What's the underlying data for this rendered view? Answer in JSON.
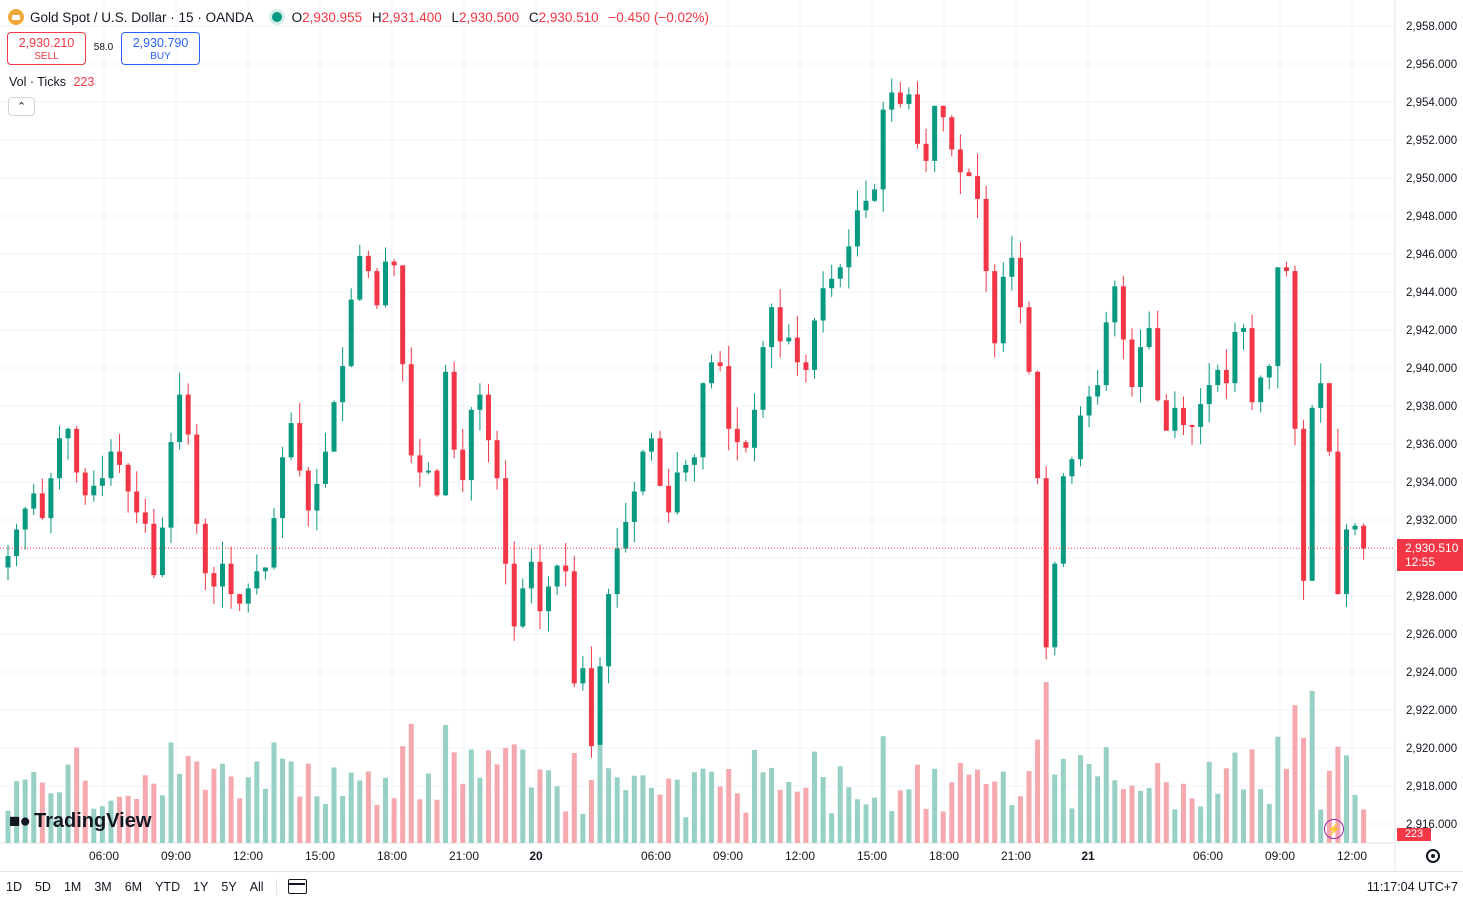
{
  "header": {
    "symbol": "Gold Spot / U.S. Dollar · 15 · OANDA",
    "open_label": "O",
    "open": "2,930.955",
    "high_label": "H",
    "high": "2,931.400",
    "low_label": "L",
    "low": "2,930.500",
    "close_label": "C",
    "close": "2,930.510",
    "change": "−0.450 (−0.02%)"
  },
  "trade": {
    "sell_price": "2,930.210",
    "sell_label": "SELL",
    "spread": "58.0",
    "buy_price": "2,930.790",
    "buy_label": "BUY"
  },
  "volume_legend": {
    "label": "Vol · Ticks",
    "value": "223"
  },
  "collapse_icon": "chevron-up",
  "logo": "TradingView",
  "price_tag": {
    "price": "2,930.510",
    "countdown": "12:55"
  },
  "volume_tag": "223",
  "bottom_bar": {
    "ranges": [
      "1D",
      "5D",
      "1M",
      "3M",
      "6M",
      "YTD",
      "1Y",
      "5Y",
      "All"
    ],
    "clock": "11:17:04 UTC+7"
  },
  "colors": {
    "up": "#089981",
    "down": "#f23645",
    "vol_up": "#97d0c5",
    "vol_down": "#f5a8ad",
    "price_line": "#f23645"
  },
  "chart_data": {
    "type": "candlestick",
    "title": "Gold Spot / U.S. Dollar · 15 · OANDA",
    "y_axis": {
      "ticks": [
        "2,958.000",
        "2,956.000",
        "2,954.000",
        "2,952.000",
        "2,950.000",
        "2,948.000",
        "2,946.000",
        "2,944.000",
        "2,942.000",
        "2,940.000",
        "2,938.000",
        "2,936.000",
        "2,934.000",
        "2,932.000",
        "2,930.000",
        "2,928.000",
        "2,926.000",
        "2,924.000",
        "2,922.000",
        "2,920.000",
        "2,918.000",
        "2,916.000"
      ],
      "range": [
        2915.2,
        2959.2
      ]
    },
    "x_axis": {
      "ticks": [
        "06:00",
        "09:00",
        "12:00",
        "15:00",
        "18:00",
        "21:00",
        "20",
        "06:00",
        "09:00",
        "12:00",
        "15:00",
        "18:00",
        "21:00",
        "21",
        "06:00",
        "09:00",
        "12:00"
      ]
    },
    "grid": true,
    "last_price": 2930.51,
    "candles_close": [
      2930.1,
      2931.5,
      2932.6,
      2933.4,
      2932.1,
      2934.2,
      2936.3,
      2936.8,
      2934.5,
      2933.3,
      2933.8,
      2934.2,
      2935.6,
      2934.9,
      2933.5,
      2932.4,
      2931.8,
      2929.1,
      2931.6,
      2936.1,
      2938.6,
      2936.5,
      2931.8,
      2929.2,
      2928.5,
      2929.7,
      2928.1,
      2927.6,
      2928.4,
      2929.3,
      2929.5,
      2932.1,
      2935.3,
      2937.1,
      2934.6,
      2932.5,
      2933.9,
      2935.6,
      2938.2,
      2940.1,
      2943.6,
      2945.9,
      2945.1,
      2943.3,
      2945.6,
      2945.4,
      2940.2,
      2935.4,
      2934.5,
      2934.6,
      2933.3,
      2939.8,
      2935.7,
      2934.1,
      2937.8,
      2938.6,
      2936.2,
      2934.2,
      2929.7,
      2926.4,
      2928.4,
      2929.8,
      2927.2,
      2928.5,
      2929.6,
      2929.3,
      2923.4,
      2924.2,
      2920.1,
      2924.3,
      2928.1,
      2930.5,
      2931.9,
      2933.5,
      2935.6,
      2936.3,
      2933.8,
      2932.4,
      2934.5,
      2934.9,
      2935.3,
      2939.2,
      2940.3,
      2940.1,
      2936.8,
      2936.1,
      2935.8,
      2937.8,
      2941.1,
      2943.2,
      2941.4,
      2941.6,
      2940.3,
      2939.9,
      2942.5,
      2944.2,
      2944.7,
      2945.3,
      2946.4,
      2948.3,
      2948.8,
      2949.4,
      2953.6,
      2954.5,
      2953.9,
      2954.4,
      2951.8,
      2950.9,
      2953.8,
      2953.2,
      2951.5,
      2950.3,
      2950.1,
      2948.9,
      2945.1,
      2941.3,
      2944.8,
      2945.8,
      2943.2,
      2939.8,
      2934.2,
      2925.3,
      2929.7,
      2934.3,
      2935.2,
      2937.5,
      2938.5,
      2939.1,
      2942.4,
      2944.3,
      2941.5,
      2939.0,
      2941.1,
      2942.1,
      2938.3,
      2936.7,
      2937.9,
      2937.0,
      2936.9,
      2938.1,
      2939.1,
      2939.9,
      2939.2,
      2941.9,
      2942.1,
      2938.2,
      2939.5,
      2940.1,
      2945.3,
      2945.1,
      2936.8,
      2928.8,
      2937.9,
      2939.2,
      2935.6,
      2928.1,
      2931.5,
      2931.7,
      2930.5
    ],
    "volume_note": "volume histogram in ticks below price pane"
  }
}
